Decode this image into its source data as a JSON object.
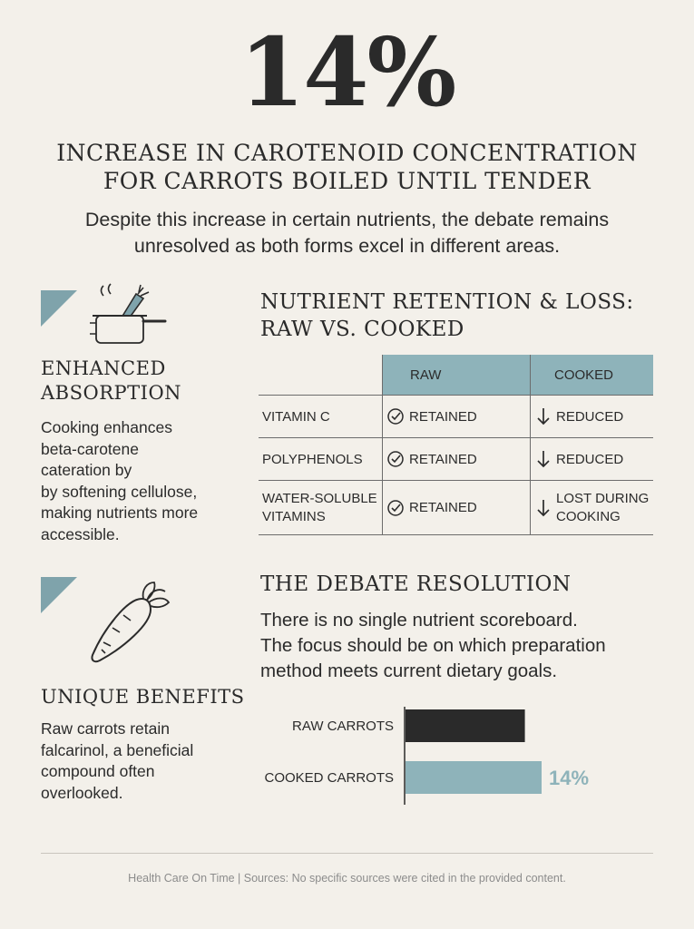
{
  "header": {
    "stat": "14%",
    "headline_line1": "INCREASE IN CAROTENOID CONCENTRATION",
    "headline_line2": "FOR CARROTS BOILED UNTIL TENDER",
    "subhead_line1": "Despite this increase in certain nutrients, the debate remains",
    "subhead_line2": "unresolved as both forms excel in different areas."
  },
  "left": {
    "absorption": {
      "icon": "pot-with-carrot-icon",
      "title_line1": "ENHANCED",
      "title_line2": "ABSORPTION",
      "text_lines": [
        "Cooking enhances",
        "beta-carotene",
        "cateration by",
        "by softening cellulose,",
        "making nutrients more",
        "accessible."
      ]
    },
    "benefits": {
      "icon": "carrot-icon",
      "title": "UNIQUE BENEFITS",
      "text_lines": [
        "Raw carrots retain",
        "falcarinol, a beneficial",
        "compound often",
        "overlooked."
      ]
    }
  },
  "table": {
    "title_line1": "NUTRIENT RETENTION & LOSS:",
    "title_line2": "RAW VS. COOKED",
    "columns": [
      "",
      "RAW",
      "COOKED"
    ],
    "rows": [
      {
        "nutrient_lines": [
          "VITAMIN C"
        ],
        "raw": "RETAINED",
        "cooked_lines": [
          "REDUCED"
        ]
      },
      {
        "nutrient_lines": [
          "POLYPHENOLS"
        ],
        "raw": "RETAINED",
        "cooked_lines": [
          "REDUCED"
        ]
      },
      {
        "nutrient_lines": [
          "WATER-SOLUBLE",
          "VITAMINS"
        ],
        "raw": "RETAINED",
        "cooked_lines": [
          "LOST DURING",
          "COOKING"
        ]
      }
    ],
    "raw_icon": "check-circle-icon",
    "cooked_icon": "arrow-down-icon"
  },
  "debate": {
    "title": "THE DEBATE RESOLUTION",
    "text_lines": [
      "There is no single nutrient scoreboard.",
      "The focus should be on which preparation",
      "method meets current dietary goals."
    ]
  },
  "chart_data": {
    "type": "bar",
    "orientation": "horizontal",
    "categories": [
      "RAW CARROTS",
      "COOKED CARROTS"
    ],
    "values": [
      1.0,
      1.14
    ],
    "data_labels": [
      "",
      "14%"
    ],
    "colors": [
      "#2a2a2a",
      "#8eb3ba"
    ]
  },
  "footer": {
    "text": "Health Care On Time | Sources: No specific sources were cited in the provided content."
  },
  "colors": {
    "accent": "#8eb3ba",
    "text": "#2a2a2a",
    "background": "#f3f0ea"
  }
}
